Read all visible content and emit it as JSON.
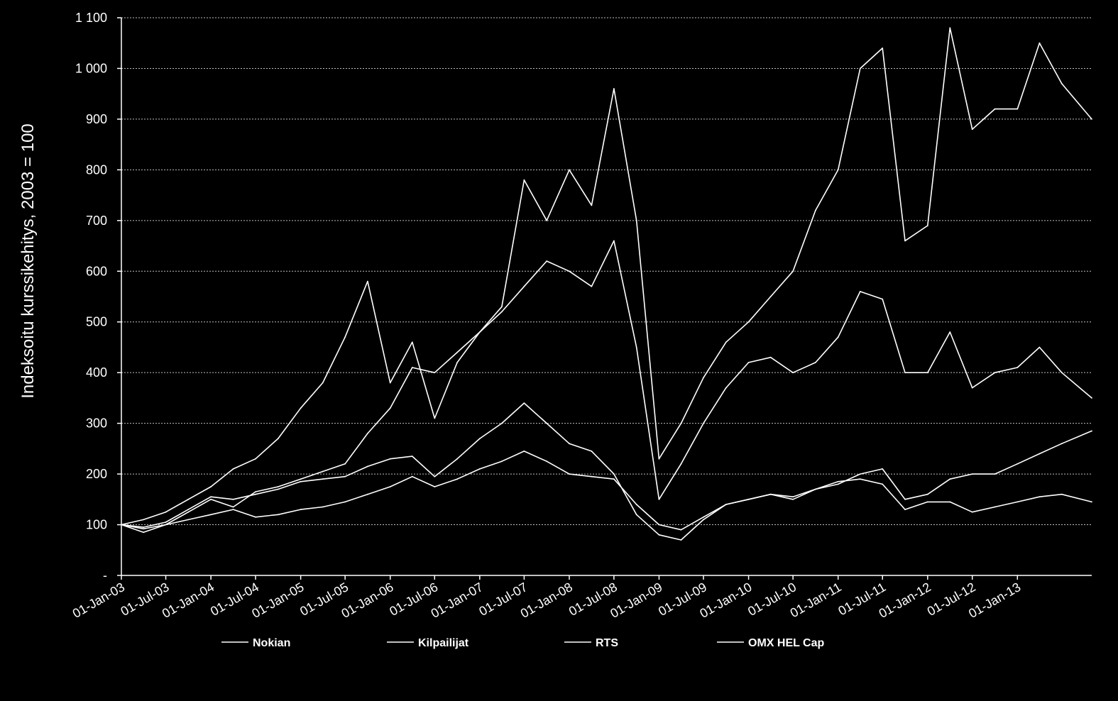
{
  "chart_data": {
    "type": "line",
    "ylabel": "Indeksoitu kurssikehitys, 2003 = 100",
    "xlabel": "",
    "ylim": [
      0,
      1100
    ],
    "xlim": [
      "2003-01-01",
      "2013-10-31"
    ],
    "grid": true,
    "legend_position": "bottom",
    "colors": {
      "background": "#000000",
      "lines": "#ffffff",
      "text": "#ffffff"
    },
    "y_ticks": [
      {
        "value": 0,
        "label": "-"
      },
      {
        "value": 100,
        "label": "100"
      },
      {
        "value": 200,
        "label": "200"
      },
      {
        "value": 300,
        "label": "300"
      },
      {
        "value": 400,
        "label": "400"
      },
      {
        "value": 500,
        "label": "500"
      },
      {
        "value": 600,
        "label": "600"
      },
      {
        "value": 700,
        "label": "700"
      },
      {
        "value": 800,
        "label": "800"
      },
      {
        "value": 900,
        "label": "900"
      },
      {
        "value": 1000,
        "label": "1 000"
      },
      {
        "value": 1100,
        "label": "1 100"
      }
    ],
    "x_ticks": [
      {
        "date": "2003-01-01",
        "label": "01-Jan-03"
      },
      {
        "date": "2003-07-01",
        "label": "01-Jul-03"
      },
      {
        "date": "2004-01-01",
        "label": "01-Jan-04"
      },
      {
        "date": "2004-07-01",
        "label": "01-Jul-04"
      },
      {
        "date": "2005-01-01",
        "label": "01-Jan-05"
      },
      {
        "date": "2005-07-01",
        "label": "01-Jul-05"
      },
      {
        "date": "2006-01-01",
        "label": "01-Jan-06"
      },
      {
        "date": "2006-07-01",
        "label": "01-Jul-06"
      },
      {
        "date": "2007-01-01",
        "label": "01-Jan-07"
      },
      {
        "date": "2007-07-01",
        "label": "01-Jul-07"
      },
      {
        "date": "2008-01-01",
        "label": "01-Jan-08"
      },
      {
        "date": "2008-07-01",
        "label": "01-Jul-08"
      },
      {
        "date": "2009-01-01",
        "label": "01-Jan-09"
      },
      {
        "date": "2009-07-01",
        "label": "01-Jul-09"
      },
      {
        "date": "2010-01-01",
        "label": "01-Jan-10"
      },
      {
        "date": "2010-07-01",
        "label": "01-Jul-10"
      },
      {
        "date": "2011-01-01",
        "label": "01-Jan-11"
      },
      {
        "date": "2011-07-01",
        "label": "01-Jul-11"
      },
      {
        "date": "2012-01-01",
        "label": "01-Jan-12"
      },
      {
        "date": "2012-07-01",
        "label": "01-Jul-12"
      },
      {
        "date": "2013-01-01",
        "label": "01-Jan-13"
      }
    ],
    "series": [
      {
        "name": "Nokian",
        "x": [
          "2003-01-01",
          "2003-04-01",
          "2003-07-01",
          "2003-10-01",
          "2004-01-01",
          "2004-04-01",
          "2004-07-01",
          "2004-10-01",
          "2005-01-01",
          "2005-04-01",
          "2005-07-01",
          "2005-10-01",
          "2006-01-01",
          "2006-04-01",
          "2006-07-01",
          "2006-10-01",
          "2007-01-01",
          "2007-04-01",
          "2007-07-01",
          "2007-10-01",
          "2008-01-01",
          "2008-04-01",
          "2008-07-01",
          "2008-10-01",
          "2009-01-01",
          "2009-04-01",
          "2009-07-01",
          "2009-10-01",
          "2010-01-01",
          "2010-04-01",
          "2010-07-01",
          "2010-10-01",
          "2011-01-01",
          "2011-04-01",
          "2011-07-01",
          "2011-10-01",
          "2012-01-01",
          "2012-04-01",
          "2012-07-01",
          "2012-10-01",
          "2013-01-01",
          "2013-04-01",
          "2013-07-01",
          "2013-10-31"
        ],
        "y": [
          100,
          85,
          100,
          125,
          150,
          135,
          165,
          175,
          190,
          205,
          220,
          280,
          330,
          410,
          400,
          440,
          480,
          530,
          780,
          700,
          800,
          730,
          960,
          700,
          230,
          300,
          390,
          460,
          500,
          550,
          600,
          720,
          800,
          1000,
          1040,
          660,
          690,
          1080,
          880,
          920,
          920,
          1050,
          970,
          900
        ]
      },
      {
        "name": "Kilpailijat",
        "x": [
          "2003-01-01",
          "2003-04-01",
          "2003-07-01",
          "2003-10-01",
          "2004-01-01",
          "2004-04-01",
          "2004-07-01",
          "2004-10-01",
          "2005-01-01",
          "2005-04-01",
          "2005-07-01",
          "2005-10-01",
          "2006-01-01",
          "2006-04-01",
          "2006-07-01",
          "2006-10-01",
          "2007-01-01",
          "2007-04-01",
          "2007-07-01",
          "2007-10-01",
          "2008-01-01",
          "2008-04-01",
          "2008-07-01",
          "2008-10-01",
          "2009-01-01",
          "2009-04-01",
          "2009-07-01",
          "2009-10-01",
          "2010-01-01",
          "2010-04-01",
          "2010-07-01",
          "2010-10-01",
          "2011-01-01",
          "2011-04-01",
          "2011-07-01",
          "2011-10-01",
          "2012-01-01",
          "2012-04-01",
          "2012-07-01",
          "2012-10-01",
          "2013-01-01",
          "2013-04-01",
          "2013-07-01",
          "2013-10-31"
        ],
        "y": [
          100,
          110,
          125,
          150,
          175,
          210,
          230,
          270,
          330,
          380,
          470,
          580,
          380,
          460,
          310,
          420,
          480,
          520,
          570,
          620,
          600,
          570,
          660,
          450,
          150,
          220,
          300,
          370,
          420,
          430,
          400,
          420,
          470,
          560,
          545,
          400,
          400,
          480,
          370,
          400,
          410,
          450,
          400,
          350
        ]
      },
      {
        "name": "RTS",
        "x": [
          "2003-01-01",
          "2003-04-01",
          "2003-07-01",
          "2003-10-01",
          "2004-01-01",
          "2004-04-01",
          "2004-07-01",
          "2004-10-01",
          "2005-01-01",
          "2005-04-01",
          "2005-07-01",
          "2005-10-01",
          "2006-01-01",
          "2006-04-01",
          "2006-07-01",
          "2006-10-01",
          "2007-01-01",
          "2007-04-01",
          "2007-07-01",
          "2007-10-01",
          "2008-01-01",
          "2008-04-01",
          "2008-07-01",
          "2008-10-01",
          "2009-01-01",
          "2009-04-01",
          "2009-07-01",
          "2009-10-01",
          "2010-01-01",
          "2010-04-01",
          "2010-07-01",
          "2010-10-01",
          "2011-01-01",
          "2011-04-01",
          "2011-07-01",
          "2011-10-01",
          "2012-01-01",
          "2012-04-01",
          "2012-07-01",
          "2012-10-01",
          "2013-01-01",
          "2013-04-01",
          "2013-07-01",
          "2013-10-31"
        ],
        "y": [
          100,
          95,
          105,
          130,
          155,
          150,
          160,
          170,
          185,
          190,
          195,
          215,
          230,
          235,
          195,
          230,
          270,
          300,
          340,
          300,
          260,
          245,
          200,
          120,
          80,
          70,
          110,
          140,
          150,
          160,
          155,
          170,
          180,
          200,
          210,
          150,
          160,
          190,
          200,
          200,
          220,
          240,
          260,
          285
        ]
      },
      {
        "name": "OMX HEL Cap",
        "x": [
          "2003-01-01",
          "2003-04-01",
          "2003-07-01",
          "2003-10-01",
          "2004-01-01",
          "2004-04-01",
          "2004-07-01",
          "2004-10-01",
          "2005-01-01",
          "2005-04-01",
          "2005-07-01",
          "2005-10-01",
          "2006-01-01",
          "2006-04-01",
          "2006-07-01",
          "2006-10-01",
          "2007-01-01",
          "2007-04-01",
          "2007-07-01",
          "2007-10-01",
          "2008-01-01",
          "2008-04-01",
          "2008-07-01",
          "2008-10-01",
          "2009-01-01",
          "2009-04-01",
          "2009-07-01",
          "2009-10-01",
          "2010-01-01",
          "2010-04-01",
          "2010-07-01",
          "2010-10-01",
          "2011-01-01",
          "2011-04-01",
          "2011-07-01",
          "2011-10-01",
          "2012-01-01",
          "2012-04-01",
          "2012-07-01",
          "2012-10-01",
          "2013-01-01",
          "2013-04-01",
          "2013-07-01",
          "2013-10-31"
        ],
        "y": [
          100,
          92,
          100,
          110,
          120,
          130,
          115,
          120,
          130,
          135,
          145,
          160,
          175,
          195,
          175,
          190,
          210,
          225,
          245,
          225,
          200,
          195,
          190,
          140,
          100,
          90,
          115,
          140,
          150,
          160,
          150,
          170,
          185,
          190,
          180,
          130,
          145,
          145,
          125,
          135,
          145,
          155,
          160,
          145
        ]
      }
    ]
  }
}
